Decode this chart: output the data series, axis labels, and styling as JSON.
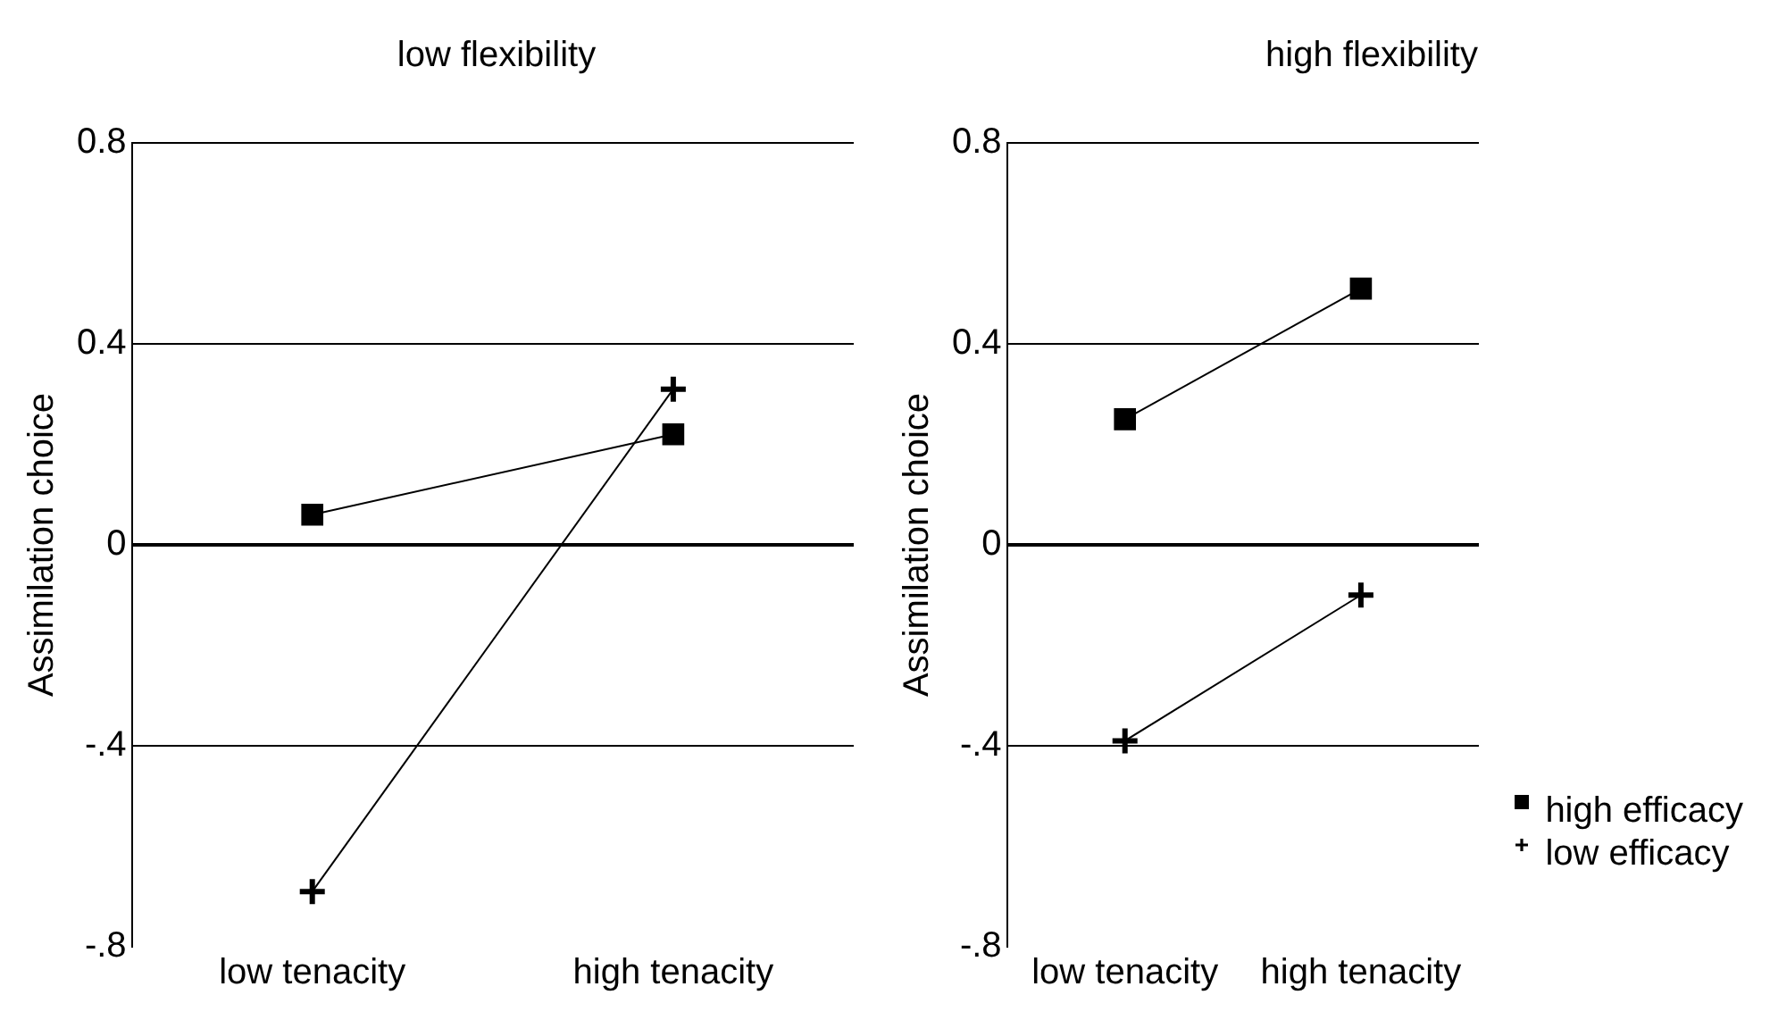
{
  "chart_data": [
    {
      "type": "line",
      "title": "low flexibility",
      "ylabel": "Assimilation choice",
      "categories": [
        "low tenacity",
        "high tenacity"
      ],
      "series": [
        {
          "color": "#000000",
          "marker": "square",
          "values": [
            0.06,
            0.22
          ]
        },
        {
          "color": "#000000",
          "marker": "cross",
          "values": [
            -0.69,
            0.31
          ]
        }
      ],
      "ylim": [
        -0.8,
        0.8
      ],
      "yticks": [
        {
          "value": -0.8,
          "label": "-.8"
        },
        {
          "value": -0.4,
          "label": "-.4"
        },
        0,
        {
          "value": 0.4,
          "label": "0.4"
        },
        {
          "value": 0.8,
          "label": "0.8"
        }
      ],
      "grid": "y",
      "legend": false
    },
    {
      "type": "line",
      "title": "high flexibility",
      "ylabel": "Assimilation choice",
      "categories": [
        "low tenacity",
        "high tenacity"
      ],
      "series": [
        {
          "name": "high efficacy",
          "color": "#000000",
          "marker": "square",
          "values": [
            0.25,
            0.51
          ]
        },
        {
          "name": "low efficacy",
          "color": "#000000",
          "marker": "cross",
          "values": [
            -0.39,
            -0.1
          ]
        }
      ],
      "ylim": [
        -0.8,
        0.8
      ],
      "yticks": [
        {
          "value": -0.8,
          "label": "-.8"
        },
        {
          "value": -0.4,
          "label": "-.4"
        },
        0,
        {
          "value": 0.4,
          "label": "0.4"
        },
        {
          "value": 0.8,
          "label": "0.8"
        }
      ],
      "grid": "y",
      "legend": "bottom right"
    }
  ]
}
